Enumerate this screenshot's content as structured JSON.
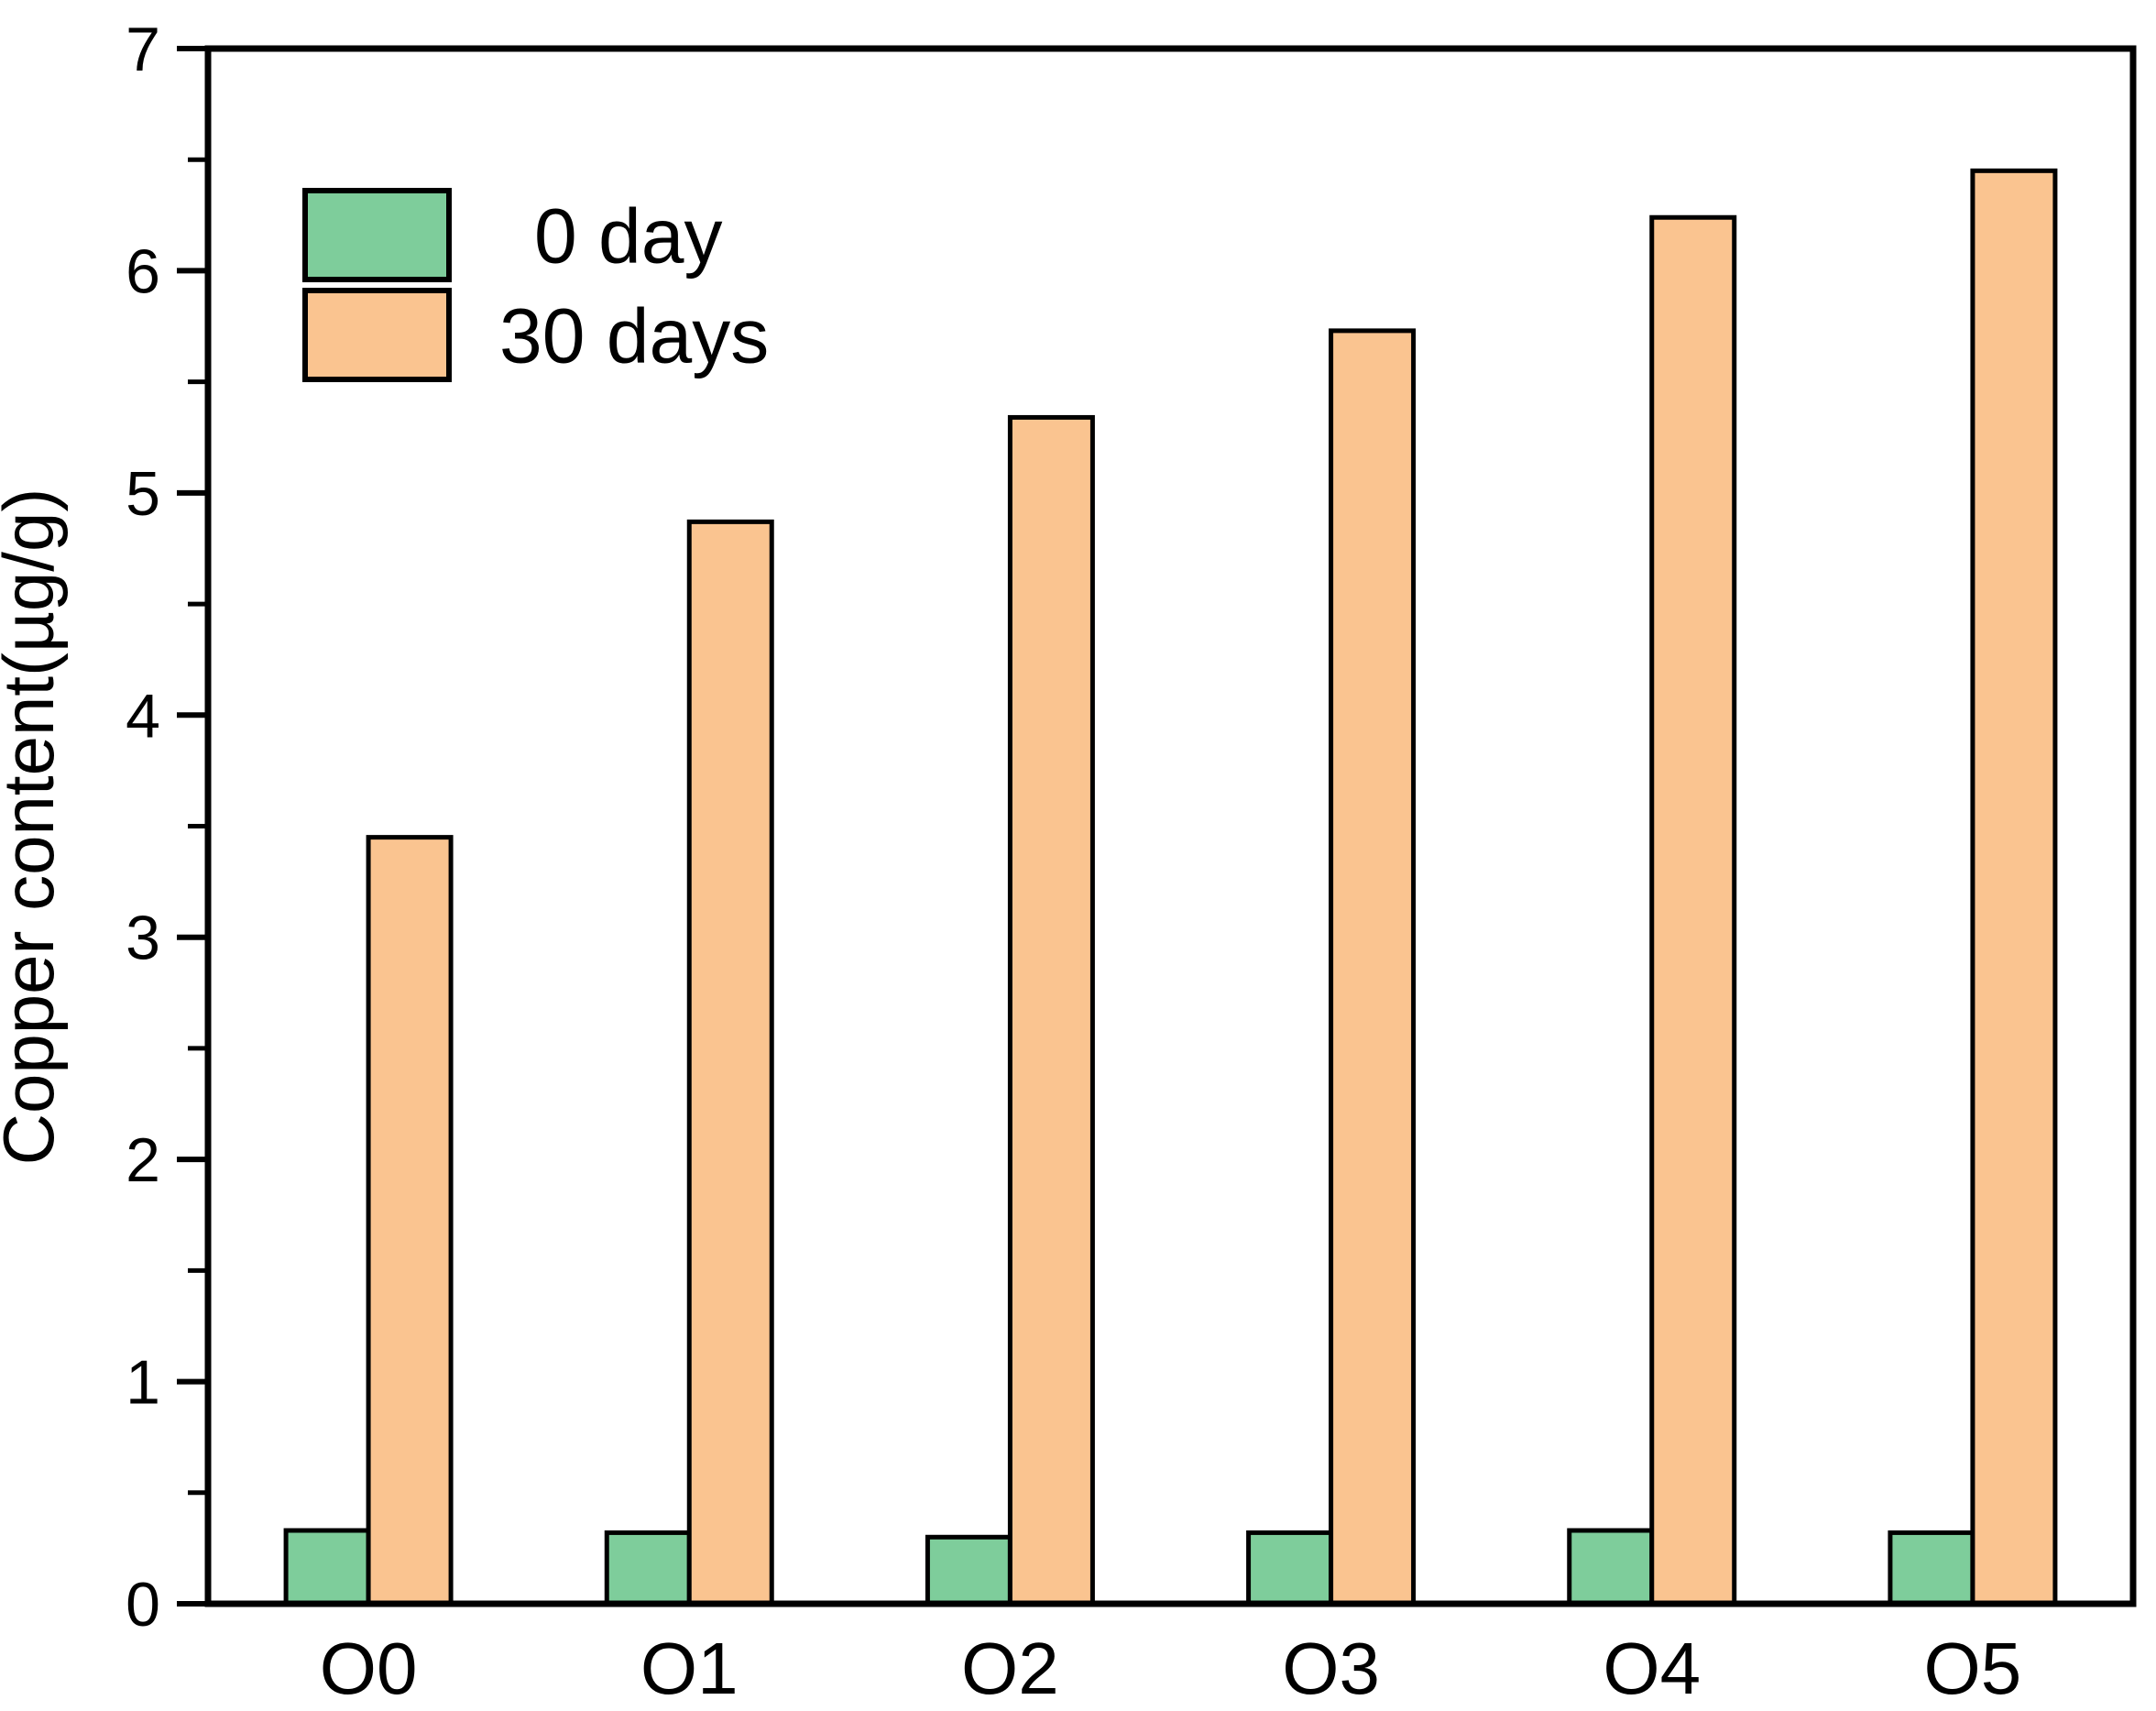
{
  "figure": {
    "background": "#ffffff",
    "frame_color": "#000000"
  },
  "chart_data": {
    "type": "bar",
    "title": "",
    "xlabel": "",
    "ylabel": "Copper content(µg/g)",
    "categories": [
      "O0",
      "O1",
      "O2",
      "O3",
      "O4",
      "O5"
    ],
    "series": [
      {
        "name": "0 day",
        "color": "#7ECD9B",
        "values": [
          0.33,
          0.32,
          0.3,
          0.32,
          0.33,
          0.32
        ]
      },
      {
        "name": "30 days",
        "color": "#FAC490",
        "values": [
          3.45,
          4.87,
          5.34,
          5.73,
          6.24,
          6.45
        ]
      }
    ],
    "ylim": [
      0,
      7
    ],
    "yticks": [
      0,
      1,
      2,
      3,
      4,
      5,
      6,
      7
    ],
    "minor_tick_interval": 0.5,
    "grid": false,
    "legend_position": "upper-left",
    "bar_outline_color": "#000000",
    "axis_color": "#000000"
  }
}
